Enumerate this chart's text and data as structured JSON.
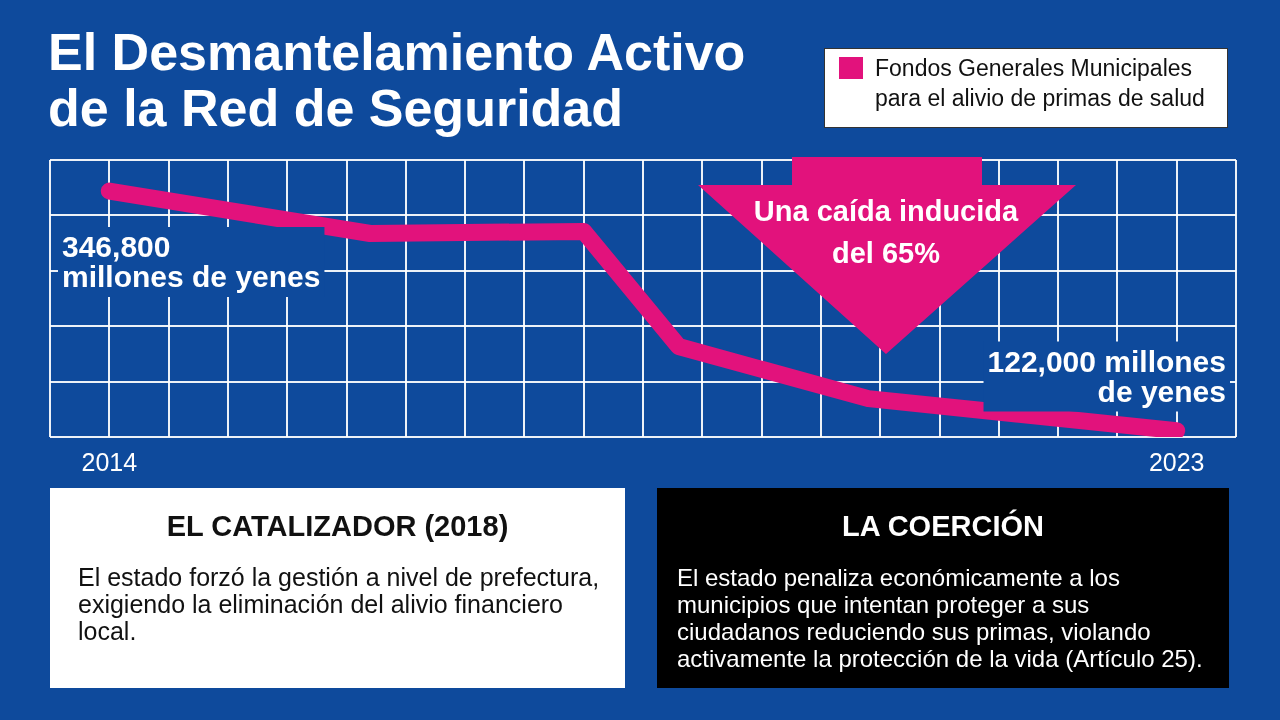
{
  "chart_data": {
    "type": "line",
    "title": "El Desmantelamiento Activo de la Red de Seguridad",
    "x": [
      2014,
      2016.2,
      2018,
      2018.8,
      2020.4,
      2023
    ],
    "series": [
      {
        "name": "Fondos Generales Municipales para el alivio de primas de salud",
        "color": "#e2127c",
        "values": [
          346800,
          307000,
          309000,
          201000,
          152000,
          122000
        ],
        "value_labels": [
          "346,800\nmillones de yenes",
          null,
          null,
          null,
          null,
          "122,000 millones\nde yenes"
        ]
      }
    ],
    "xlim": [
      2013.5,
      2023.5
    ],
    "xticks": [
      {
        "value": 2013.5,
        "label": null
      },
      2014,
      {
        "value": 2014.5,
        "label": null
      },
      {
        "value": 2015,
        "label": null
      },
      {
        "value": 2015.5,
        "label": null
      },
      {
        "value": 2016,
        "label": null
      },
      {
        "value": 2016.5,
        "label": null
      },
      {
        "value": 2017,
        "label": null
      },
      {
        "value": 2017.5,
        "label": null
      },
      {
        "value": 2018,
        "label": null
      },
      {
        "value": 2018.5,
        "label": null
      },
      {
        "value": 2019,
        "label": null
      },
      {
        "value": 2019.5,
        "label": null
      },
      {
        "value": 2020,
        "label": null
      },
      {
        "value": 2020.5,
        "label": null
      },
      {
        "value": 2021,
        "label": null
      },
      {
        "value": 2021.5,
        "label": null
      },
      {
        "value": 2022,
        "label": null
      },
      {
        "value": 2022.5,
        "label": null
      },
      2023,
      {
        "value": 2023.5,
        "label": null
      }
    ],
    "ylim": [
      116000,
      376000
    ],
    "yticks": [
      {
        "value": 116000,
        "label": null
      },
      {
        "value": 168000,
        "label": null
      },
      {
        "value": 220000,
        "label": null
      },
      {
        "value": 272000,
        "label": null
      },
      {
        "value": 324000,
        "label": null
      },
      {
        "value": 376000,
        "label": null
      }
    ],
    "tick_labels": "x",
    "grid": true,
    "legend": "top right",
    "line_style": "solid",
    "annotations": [
      "Una caída inducida del 65%",
      "EL CATALIZADOR (2018)",
      "El estado forzó la gestión a nivel de prefectura, exigiendo la eliminación del alivio financiero local.",
      "LA COERCIÓN",
      "El estado penaliza económicamente a los municipios que intentan proteger a sus ciudadanos reduciendo sus primas, violando activamente la protección de la vida (Artículo 25)."
    ]
  }
}
